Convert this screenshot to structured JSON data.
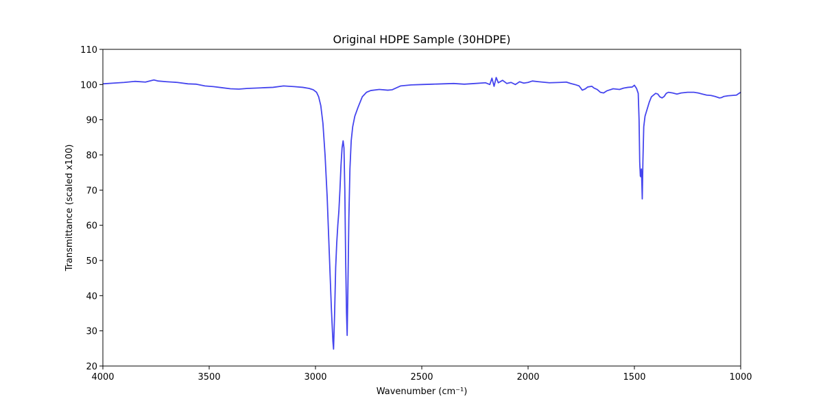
{
  "chart_data": {
    "type": "line",
    "title": "Original HDPE Sample (30HDPE)",
    "xlabel": "Wavenumber (cm⁻¹)",
    "ylabel": "Transmittance (scaled x100)",
    "xlim": [
      4000,
      1000
    ],
    "ylim": [
      20,
      110
    ],
    "x_inverted": true,
    "grid": false,
    "x_ticks": [
      4000,
      3500,
      3000,
      2500,
      2000,
      1500,
      1000
    ],
    "y_ticks": [
      20,
      30,
      40,
      50,
      60,
      70,
      80,
      90,
      100,
      110
    ],
    "series": [
      {
        "color": "#4444ee",
        "points": [
          [
            4000,
            100.2
          ],
          [
            3950,
            100.4
          ],
          [
            3900,
            100.6
          ],
          [
            3850,
            100.9
          ],
          [
            3800,
            100.7
          ],
          [
            3760,
            101.3
          ],
          [
            3740,
            101.0
          ],
          [
            3700,
            100.8
          ],
          [
            3650,
            100.6
          ],
          [
            3600,
            100.2
          ],
          [
            3560,
            100.1
          ],
          [
            3520,
            99.6
          ],
          [
            3480,
            99.4
          ],
          [
            3440,
            99.1
          ],
          [
            3400,
            98.8
          ],
          [
            3360,
            98.7
          ],
          [
            3320,
            98.9
          ],
          [
            3280,
            99.0
          ],
          [
            3240,
            99.1
          ],
          [
            3200,
            99.2
          ],
          [
            3150,
            99.6
          ],
          [
            3100,
            99.4
          ],
          [
            3060,
            99.2
          ],
          [
            3030,
            98.9
          ],
          [
            3010,
            98.5
          ],
          [
            2995,
            97.8
          ],
          [
            2985,
            96.5
          ],
          [
            2975,
            94.0
          ],
          [
            2965,
            89.0
          ],
          [
            2955,
            80.0
          ],
          [
            2945,
            68.0
          ],
          [
            2935,
            52.0
          ],
          [
            2925,
            36.0
          ],
          [
            2918,
            27.0
          ],
          [
            2915,
            24.8
          ],
          [
            2910,
            35.0
          ],
          [
            2905,
            48.0
          ],
          [
            2900,
            55.0
          ],
          [
            2895,
            60.0
          ],
          [
            2890,
            64.0
          ],
          [
            2885,
            70.0
          ],
          [
            2880,
            77.0
          ],
          [
            2875,
            82.0
          ],
          [
            2870,
            84.0
          ],
          [
            2866,
            82.0
          ],
          [
            2862,
            70.0
          ],
          [
            2858,
            50.0
          ],
          [
            2854,
            35.0
          ],
          [
            2851,
            28.7
          ],
          [
            2848,
            40.0
          ],
          [
            2843,
            62.0
          ],
          [
            2838,
            76.0
          ],
          [
            2832,
            84.0
          ],
          [
            2825,
            88.0
          ],
          [
            2815,
            91.0
          ],
          [
            2800,
            93.5
          ],
          [
            2780,
            96.5
          ],
          [
            2760,
            97.8
          ],
          [
            2740,
            98.3
          ],
          [
            2700,
            98.6
          ],
          [
            2660,
            98.4
          ],
          [
            2640,
            98.5
          ],
          [
            2600,
            99.6
          ],
          [
            2550,
            99.9
          ],
          [
            2500,
            100.0
          ],
          [
            2450,
            100.1
          ],
          [
            2400,
            100.2
          ],
          [
            2350,
            100.3
          ],
          [
            2300,
            100.1
          ],
          [
            2250,
            100.3
          ],
          [
            2200,
            100.5
          ],
          [
            2180,
            100.0
          ],
          [
            2170,
            101.8
          ],
          [
            2160,
            99.5
          ],
          [
            2150,
            102.0
          ],
          [
            2140,
            100.5
          ],
          [
            2120,
            101.2
          ],
          [
            2100,
            100.3
          ],
          [
            2080,
            100.6
          ],
          [
            2060,
            100.0
          ],
          [
            2040,
            100.8
          ],
          [
            2020,
            100.4
          ],
          [
            2000,
            100.6
          ],
          [
            1980,
            101.0
          ],
          [
            1950,
            100.8
          ],
          [
            1900,
            100.5
          ],
          [
            1850,
            100.6
          ],
          [
            1820,
            100.7
          ],
          [
            1800,
            100.3
          ],
          [
            1780,
            100.0
          ],
          [
            1760,
            99.6
          ],
          [
            1745,
            98.4
          ],
          [
            1730,
            98.8
          ],
          [
            1720,
            99.3
          ],
          [
            1700,
            99.5
          ],
          [
            1690,
            99.0
          ],
          [
            1675,
            98.6
          ],
          [
            1660,
            97.8
          ],
          [
            1645,
            97.6
          ],
          [
            1630,
            98.2
          ],
          [
            1600,
            98.8
          ],
          [
            1570,
            98.6
          ],
          [
            1550,
            99.0
          ],
          [
            1530,
            99.2
          ],
          [
            1510,
            99.3
          ],
          [
            1500,
            99.8
          ],
          [
            1490,
            98.9
          ],
          [
            1482,
            97.5
          ],
          [
            1478,
            90.0
          ],
          [
            1475,
            78.0
          ],
          [
            1472,
            74.0
          ],
          [
            1470,
            73.8
          ],
          [
            1467,
            76.0
          ],
          [
            1465,
            72.0
          ],
          [
            1463,
            67.5
          ],
          [
            1460,
            78.0
          ],
          [
            1456,
            88.0
          ],
          [
            1450,
            91.0
          ],
          [
            1440,
            93.0
          ],
          [
            1430,
            95.0
          ],
          [
            1420,
            96.5
          ],
          [
            1410,
            97.0
          ],
          [
            1400,
            97.5
          ],
          [
            1390,
            97.3
          ],
          [
            1380,
            96.5
          ],
          [
            1370,
            96.2
          ],
          [
            1360,
            96.6
          ],
          [
            1350,
            97.5
          ],
          [
            1340,
            97.8
          ],
          [
            1320,
            97.6
          ],
          [
            1300,
            97.3
          ],
          [
            1280,
            97.6
          ],
          [
            1250,
            97.8
          ],
          [
            1220,
            97.8
          ],
          [
            1200,
            97.6
          ],
          [
            1180,
            97.3
          ],
          [
            1160,
            97.0
          ],
          [
            1140,
            96.9
          ],
          [
            1120,
            96.6
          ],
          [
            1100,
            96.2
          ],
          [
            1090,
            96.3
          ],
          [
            1080,
            96.6
          ],
          [
            1060,
            96.8
          ],
          [
            1040,
            96.9
          ],
          [
            1020,
            97.0
          ],
          [
            1010,
            97.4
          ],
          [
            1000,
            97.8
          ]
        ]
      }
    ]
  }
}
